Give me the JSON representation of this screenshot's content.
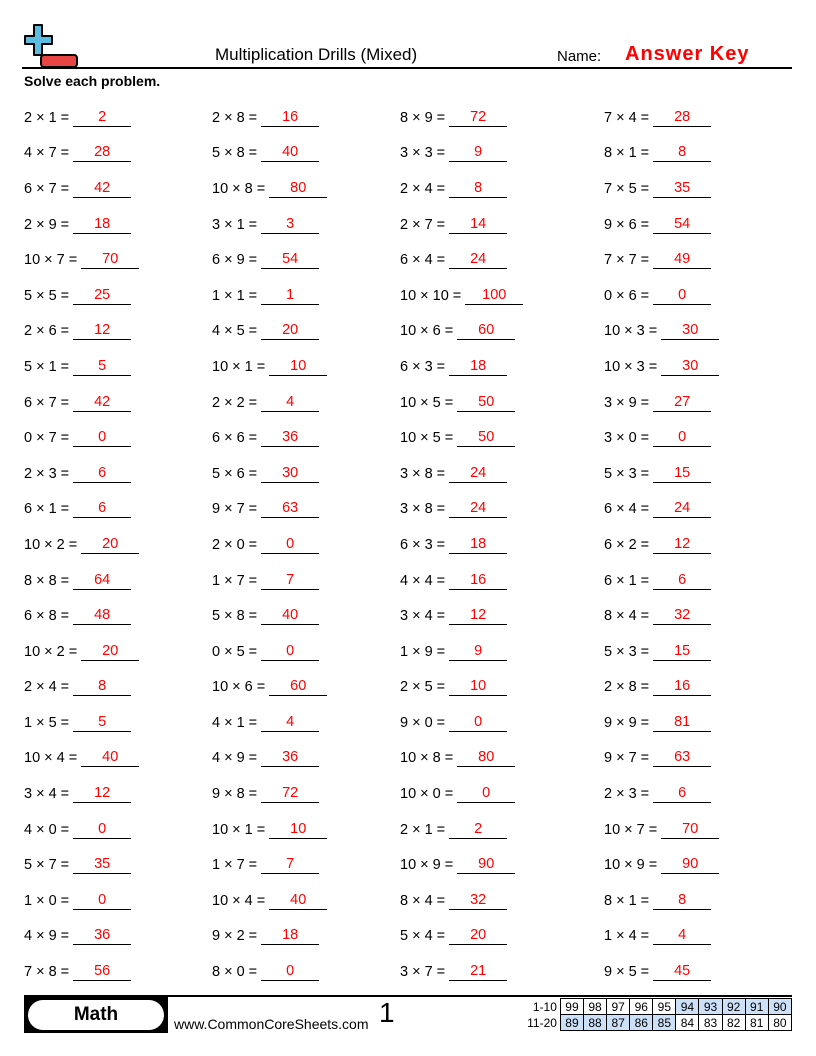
{
  "header": {
    "title": "Multiplication Drills (Mixed)",
    "name_label": "Name:",
    "name_value": "Answer Key",
    "instructions": "Solve each problem.",
    "logo_icon": "plus-minus-logo-icon"
  },
  "colors": {
    "answer": "#ff0000",
    "logo_blue": "#5bbde0",
    "logo_red": "#e84545",
    "score_highlight": "#cce0f8"
  },
  "columns": [
    [
      {
        "q": "2 × 1 =",
        "a": "2"
      },
      {
        "q": "4 × 7 =",
        "a": "28"
      },
      {
        "q": "6 × 7 =",
        "a": "42"
      },
      {
        "q": "2 × 9 =",
        "a": "18"
      },
      {
        "q": "10 × 7 =",
        "a": "70"
      },
      {
        "q": "5 × 5 =",
        "a": "25"
      },
      {
        "q": "2 × 6 =",
        "a": "12"
      },
      {
        "q": "5 × 1 =",
        "a": "5"
      },
      {
        "q": "6 × 7 =",
        "a": "42"
      },
      {
        "q": "0 × 7 =",
        "a": "0"
      },
      {
        "q": "2 × 3 =",
        "a": "6"
      },
      {
        "q": "6 × 1 =",
        "a": "6"
      },
      {
        "q": "10 × 2 =",
        "a": "20"
      },
      {
        "q": "8 × 8 =",
        "a": "64"
      },
      {
        "q": "6 × 8 =",
        "a": "48"
      },
      {
        "q": "10 × 2 =",
        "a": "20"
      },
      {
        "q": "2 × 4 =",
        "a": "8"
      },
      {
        "q": "1 × 5 =",
        "a": "5"
      },
      {
        "q": "10 × 4 =",
        "a": "40"
      },
      {
        "q": "3 × 4 =",
        "a": "12"
      },
      {
        "q": "4 × 0 =",
        "a": "0"
      },
      {
        "q": "5 × 7 =",
        "a": "35"
      },
      {
        "q": "1 × 0 =",
        "a": "0"
      },
      {
        "q": "4 × 9 =",
        "a": "36"
      },
      {
        "q": "7 × 8 =",
        "a": "56"
      }
    ],
    [
      {
        "q": "2 × 8 =",
        "a": "16"
      },
      {
        "q": "5 × 8 =",
        "a": "40"
      },
      {
        "q": "10 × 8 =",
        "a": "80"
      },
      {
        "q": "3 × 1 =",
        "a": "3"
      },
      {
        "q": "6 × 9 =",
        "a": "54"
      },
      {
        "q": "1 × 1 =",
        "a": "1"
      },
      {
        "q": "4 × 5 =",
        "a": "20"
      },
      {
        "q": "10 × 1 =",
        "a": "10"
      },
      {
        "q": "2 × 2 =",
        "a": "4"
      },
      {
        "q": "6 × 6 =",
        "a": "36"
      },
      {
        "q": "5 × 6 =",
        "a": "30"
      },
      {
        "q": "9 × 7 =",
        "a": "63"
      },
      {
        "q": "2 × 0 =",
        "a": "0"
      },
      {
        "q": "1 × 7 =",
        "a": "7"
      },
      {
        "q": "5 × 8 =",
        "a": "40"
      },
      {
        "q": "0 × 5 =",
        "a": "0"
      },
      {
        "q": "10 × 6 =",
        "a": "60"
      },
      {
        "q": "4 × 1 =",
        "a": "4"
      },
      {
        "q": "4 × 9 =",
        "a": "36"
      },
      {
        "q": "9 × 8 =",
        "a": "72"
      },
      {
        "q": "10 × 1 =",
        "a": "10"
      },
      {
        "q": "1 × 7 =",
        "a": "7"
      },
      {
        "q": "10 × 4 =",
        "a": "40"
      },
      {
        "q": "9 × 2 =",
        "a": "18"
      },
      {
        "q": "8 × 0 =",
        "a": "0"
      }
    ],
    [
      {
        "q": "8 × 9 =",
        "a": "72"
      },
      {
        "q": "3 × 3 =",
        "a": "9"
      },
      {
        "q": "2 × 4 =",
        "a": "8"
      },
      {
        "q": "2 × 7 =",
        "a": "14"
      },
      {
        "q": "6 × 4 =",
        "a": "24"
      },
      {
        "q": "10 × 10 =",
        "a": "100"
      },
      {
        "q": "10 × 6 =",
        "a": "60"
      },
      {
        "q": "6 × 3 =",
        "a": "18"
      },
      {
        "q": "10 × 5 =",
        "a": "50"
      },
      {
        "q": "10 × 5 =",
        "a": "50"
      },
      {
        "q": "3 × 8 =",
        "a": "24"
      },
      {
        "q": "3 × 8 =",
        "a": "24"
      },
      {
        "q": "6 × 3 =",
        "a": "18"
      },
      {
        "q": "4 × 4 =",
        "a": "16"
      },
      {
        "q": "3 × 4 =",
        "a": "12"
      },
      {
        "q": "1 × 9 =",
        "a": "9"
      },
      {
        "q": "2 × 5 =",
        "a": "10"
      },
      {
        "q": "9 × 0 =",
        "a": "0"
      },
      {
        "q": "10 × 8 =",
        "a": "80"
      },
      {
        "q": "10 × 0 =",
        "a": "0"
      },
      {
        "q": "2 × 1 =",
        "a": "2"
      },
      {
        "q": "10 × 9 =",
        "a": "90"
      },
      {
        "q": "8 × 4 =",
        "a": "32"
      },
      {
        "q": "5 × 4 =",
        "a": "20"
      },
      {
        "q": "3 × 7 =",
        "a": "21"
      }
    ],
    [
      {
        "q": "7 × 4 =",
        "a": "28"
      },
      {
        "q": "8 × 1 =",
        "a": "8"
      },
      {
        "q": "7 × 5 =",
        "a": "35"
      },
      {
        "q": "9 × 6 =",
        "a": "54"
      },
      {
        "q": "7 × 7 =",
        "a": "49"
      },
      {
        "q": "0 × 6 =",
        "a": "0"
      },
      {
        "q": "10 × 3 =",
        "a": "30"
      },
      {
        "q": "10 × 3 =",
        "a": "30"
      },
      {
        "q": "3 × 9 =",
        "a": "27"
      },
      {
        "q": "3 × 0 =",
        "a": "0"
      },
      {
        "q": "5 × 3 =",
        "a": "15"
      },
      {
        "q": "6 × 4 =",
        "a": "24"
      },
      {
        "q": "6 × 2 =",
        "a": "12"
      },
      {
        "q": "6 × 1 =",
        "a": "6"
      },
      {
        "q": "8 × 4 =",
        "a": "32"
      },
      {
        "q": "5 × 3 =",
        "a": "15"
      },
      {
        "q": "2 × 8 =",
        "a": "16"
      },
      {
        "q": "9 × 9 =",
        "a": "81"
      },
      {
        "q": "9 × 7 =",
        "a": "63"
      },
      {
        "q": "2 × 3 =",
        "a": "6"
      },
      {
        "q": "10 × 7 =",
        "a": "70"
      },
      {
        "q": "10 × 9 =",
        "a": "90"
      },
      {
        "q": "8 × 1 =",
        "a": "8"
      },
      {
        "q": "1 × 4 =",
        "a": "4"
      },
      {
        "q": "9 × 5 =",
        "a": "45"
      }
    ]
  ],
  "footer": {
    "subject": "Math",
    "site": "www.CommonCoreSheets.com",
    "page": "1",
    "score_rows": [
      {
        "label": "1-10",
        "cells": [
          "99",
          "98",
          "97",
          "96",
          "95",
          "94",
          "93",
          "92",
          "91",
          "90"
        ],
        "highlighted": [
          false,
          false,
          false,
          false,
          false,
          true,
          true,
          true,
          true,
          true
        ]
      },
      {
        "label": "11-20",
        "cells": [
          "89",
          "88",
          "87",
          "86",
          "85",
          "84",
          "83",
          "82",
          "81",
          "80"
        ],
        "highlighted": [
          true,
          true,
          true,
          true,
          true,
          false,
          false,
          false,
          false,
          false
        ]
      }
    ]
  }
}
